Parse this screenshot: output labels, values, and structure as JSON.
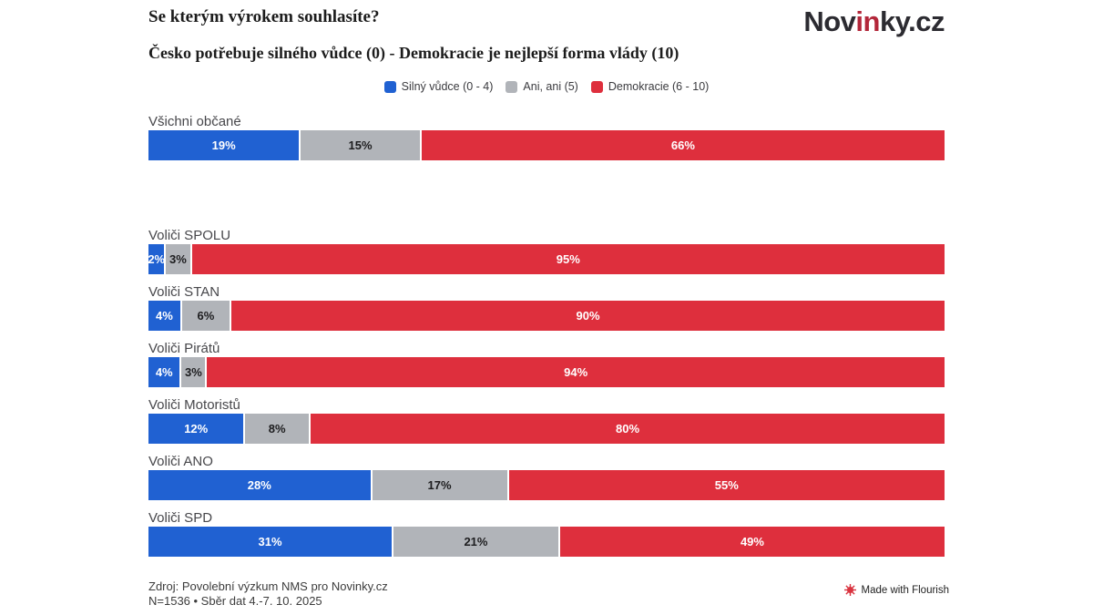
{
  "header": {
    "title": "Se kterým výrokem souhlasíte?",
    "subtitle": "Česko potřebuje silného vůdce (0) - Demokracie je nejlepší forma vlády (10)",
    "logo": {
      "part1": "Nov",
      "part2": "in",
      "part3": "ky.cz",
      "accent_color": "#b3273a",
      "text_color": "#2c2b31"
    }
  },
  "legend": [
    {
      "label": "Silný vůdce (0 - 4)",
      "color": "#2061d2"
    },
    {
      "label": "Ani, ani (5)",
      "color": "#b1b4b9"
    },
    {
      "label": "Demokracie (6 - 10)",
      "color": "#de2f3d"
    }
  ],
  "chart_data": {
    "type": "bar",
    "orientation": "horizontal",
    "stacked": true,
    "value_suffix": "%",
    "xlim": [
      0,
      100
    ],
    "grid": false,
    "legend_position": "top-center",
    "categories": [
      "Všichni občané",
      "Voliči SPOLU",
      "Voliči STAN",
      "Voliči Pirátů",
      "Voliči Motoristů",
      "Voliči ANO",
      "Voliči SPD"
    ],
    "series": [
      {
        "name": "Silný vůdce (0 - 4)",
        "color": "#2061d2",
        "label_color": "#ffffff",
        "values": [
          19,
          2,
          4,
          4,
          12,
          28,
          31
        ]
      },
      {
        "name": "Ani, ani (5)",
        "color": "#b1b4b9",
        "label_color": "#1d1d1f",
        "values": [
          15,
          3,
          6,
          3,
          8,
          17,
          21
        ]
      },
      {
        "name": "Demokracie (6 - 10)",
        "color": "#de2f3d",
        "label_color": "#ffffff",
        "values": [
          66,
          95,
          90,
          94,
          80,
          55,
          49
        ]
      }
    ]
  },
  "footer": {
    "source_line1": "Zdroj: Povolební výzkum NMS pro Novinky.cz",
    "source_line2": "N=1536 • Sběr dat 4.-7. 10. 2025",
    "flourish_credit": "Made with Flourish",
    "flourish_icon_color": "#d9333f"
  }
}
